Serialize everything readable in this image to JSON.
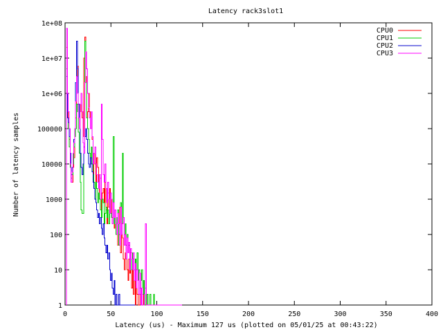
{
  "chart_data": {
    "type": "line",
    "title": "Latency rack3slot1",
    "xlabel": "Latency (us) - Maximum 127 us (plotted on 05/01/25 at 00:43:22)",
    "ylabel": "Number of latency samples",
    "xlim": [
      0,
      400
    ],
    "ylim": [
      1,
      100000000
    ],
    "yscale": "log",
    "grid": false,
    "legend_position": "top-right",
    "x_ticks": [
      "0",
      "50",
      "100",
      "150",
      "200",
      "250",
      "300",
      "350",
      "400"
    ],
    "y_ticks": [
      "1",
      "10",
      "100",
      "1000",
      "10000",
      "100000",
      "1e+06",
      "1e+07",
      "1e+08"
    ],
    "series": [
      {
        "name": "CPU0",
        "color": "#ff0000",
        "x": [
          2,
          3,
          4,
          5,
          6,
          7,
          8,
          9,
          10,
          11,
          12,
          13,
          14,
          15,
          16,
          17,
          18,
          19,
          20,
          21,
          22,
          23,
          24,
          25,
          26,
          27,
          28,
          29,
          30,
          31,
          32,
          33,
          34,
          35,
          36,
          37,
          38,
          39,
          40,
          41,
          42,
          43,
          44,
          45,
          46,
          47,
          48,
          49,
          50,
          51,
          52,
          53,
          54,
          55,
          56,
          57,
          58,
          59,
          60,
          61,
          62,
          63,
          64,
          65,
          66,
          67,
          68,
          69,
          70,
          71,
          72,
          73,
          74,
          75,
          76,
          77,
          78,
          79,
          80,
          81,
          82,
          83,
          84,
          85,
          86,
          87,
          88
        ],
        "values": [
          20000000,
          300000,
          200000,
          50000,
          10000,
          5000,
          3000,
          8000,
          15000,
          80000,
          200000,
          3000000,
          6000000,
          500000,
          100000,
          300000,
          1000000,
          200000,
          60000,
          10000000,
          40000000,
          3000000,
          200000,
          300000,
          1000000,
          300000,
          100000,
          300000,
          50000,
          5000,
          20000,
          10000,
          3000,
          15000,
          8000,
          2000,
          1000,
          4000,
          500,
          1500,
          2000,
          800,
          3000,
          500,
          200,
          1500,
          600,
          2000,
          400,
          1000,
          300,
          800,
          150,
          500,
          100,
          300,
          50,
          100,
          600,
          30,
          200,
          80,
          20,
          10,
          30,
          50,
          10,
          5,
          20,
          8,
          30,
          3,
          10,
          2,
          5,
          1,
          3,
          2,
          1,
          1,
          2,
          1,
          1,
          1,
          2,
          1,
          1
        ]
      },
      {
        "name": "CPU1",
        "color": "#00cc00",
        "x": [
          2,
          3,
          4,
          5,
          6,
          7,
          8,
          9,
          10,
          11,
          12,
          13,
          14,
          15,
          16,
          17,
          18,
          19,
          20,
          21,
          22,
          23,
          24,
          25,
          26,
          27,
          28,
          29,
          30,
          31,
          32,
          33,
          34,
          35,
          36,
          37,
          38,
          39,
          40,
          41,
          42,
          43,
          44,
          45,
          46,
          47,
          48,
          49,
          50,
          51,
          52,
          53,
          54,
          55,
          56,
          57,
          58,
          59,
          60,
          61,
          62,
          63,
          64,
          65,
          66,
          67,
          68,
          69,
          70,
          71,
          72,
          73,
          74,
          75,
          76,
          77,
          78,
          79,
          80,
          81,
          82,
          83,
          84,
          85,
          86,
          87,
          88,
          89,
          90,
          91,
          92,
          93,
          94,
          95,
          96,
          97,
          98,
          99,
          100,
          101,
          102,
          103,
          104,
          105,
          106,
          107,
          108,
          109,
          110,
          111
        ],
        "values": [
          5000000,
          200000,
          100000,
          30000,
          8000,
          4000,
          5000,
          10000,
          30000,
          60000,
          100000,
          500000,
          300000,
          80000,
          20000,
          3000,
          500,
          400,
          400,
          20000,
          30000000,
          2000000,
          200000,
          100000,
          50000,
          20000,
          10000,
          30000,
          10000,
          5000,
          3000,
          1000,
          3000,
          2000,
          800,
          1500,
          1000,
          500,
          300,
          1000,
          800,
          200,
          400,
          600,
          300,
          500,
          200,
          1000,
          400,
          300,
          200,
          60000,
          200,
          500,
          100,
          300,
          500,
          50,
          200,
          800,
          100,
          20000,
          300,
          100,
          200,
          50,
          100,
          30,
          50,
          20,
          40,
          10,
          30,
          20,
          10,
          20,
          10,
          30,
          5,
          10,
          3,
          5,
          10,
          2,
          5,
          1,
          3,
          1,
          2,
          1,
          1,
          2,
          1,
          1,
          1,
          2,
          1,
          1,
          1,
          1,
          1,
          1,
          1,
          1,
          1,
          1,
          1,
          1,
          1,
          1
        ]
      },
      {
        "name": "CPU2",
        "color": "#0000cc",
        "x": [
          2,
          3,
          4,
          5,
          6,
          7,
          8,
          9,
          10,
          11,
          12,
          13,
          14,
          15,
          16,
          17,
          18,
          19,
          20,
          21,
          22,
          23,
          24,
          25,
          26,
          27,
          28,
          29,
          30,
          31,
          32,
          33,
          34,
          35,
          36,
          37,
          38,
          39,
          40,
          41,
          42,
          43,
          44,
          45,
          46,
          47,
          48,
          49,
          50,
          51,
          52,
          53,
          54,
          55,
          56,
          57,
          58,
          59,
          60,
          61,
          62,
          63,
          64,
          65,
          66,
          67,
          68,
          69,
          70,
          71,
          72,
          73,
          74,
          75,
          76
        ],
        "values": [
          3000000,
          200000,
          150000,
          60000,
          20000,
          5000,
          8000,
          20000,
          50000,
          100000,
          2000000,
          30000000,
          5000000,
          500000,
          100000,
          20000,
          8000,
          5000,
          10000,
          30000,
          60000,
          100000,
          50000,
          20000,
          10000,
          8000,
          15000,
          10000,
          6000,
          3000,
          2000,
          1000,
          800,
          500,
          300,
          400,
          200,
          300,
          150,
          100,
          200,
          80,
          50,
          30,
          50,
          20,
          30,
          10,
          5,
          8,
          3,
          2,
          5,
          1,
          2,
          1,
          1,
          2,
          1,
          1,
          1,
          1,
          1,
          1,
          1,
          1,
          1,
          1,
          1,
          1,
          1,
          1,
          1,
          1,
          1
        ]
      },
      {
        "name": "CPU3",
        "color": "#ff00ff",
        "x": [
          2,
          3,
          4,
          5,
          6,
          7,
          8,
          9,
          10,
          11,
          12,
          13,
          14,
          15,
          16,
          17,
          18,
          19,
          20,
          21,
          22,
          23,
          24,
          25,
          26,
          27,
          28,
          29,
          30,
          31,
          32,
          33,
          34,
          35,
          36,
          37,
          38,
          39,
          40,
          41,
          42,
          43,
          44,
          45,
          46,
          47,
          48,
          49,
          50,
          51,
          52,
          53,
          54,
          55,
          56,
          57,
          58,
          59,
          60,
          61,
          62,
          63,
          64,
          65,
          66,
          67,
          68,
          69,
          70,
          71,
          72,
          73,
          74,
          75,
          76,
          77,
          78,
          79,
          80,
          81,
          82,
          83,
          84,
          85,
          86,
          87,
          88,
          89,
          90,
          91,
          92,
          93,
          94,
          95,
          96,
          97,
          98,
          99,
          100,
          101,
          102,
          103,
          104,
          105,
          106,
          107,
          108,
          109,
          110,
          111,
          112,
          113,
          114,
          115,
          116,
          117,
          118,
          119,
          120,
          121,
          122,
          123,
          124,
          125,
          126,
          127
        ],
        "values": [
          70000000,
          1000000,
          300000,
          100000,
          10000,
          3000,
          6000,
          20000,
          40000,
          100000,
          600000,
          3000000,
          1000000,
          200000,
          100000,
          500000,
          1000000,
          300000,
          40000,
          20000,
          2000000,
          15000000,
          5000000,
          1000000,
          400000,
          200000,
          100000,
          300000,
          60000,
          10000,
          20000,
          30000,
          10000,
          5000,
          3000,
          2000,
          5000,
          1000,
          500000,
          50000,
          5000,
          3000,
          10000,
          2000,
          800,
          3000,
          1000,
          400,
          1500,
          1000,
          200,
          800,
          300,
          500,
          200,
          100,
          400,
          200,
          50,
          600,
          100,
          200,
          300,
          50,
          100,
          20,
          80,
          30,
          60,
          10,
          40,
          20,
          10,
          30,
          5,
          15,
          3,
          10,
          5,
          2,
          8,
          1,
          3,
          1,
          1,
          2,
          200,
          1,
          1,
          1,
          1,
          1,
          1,
          1,
          1,
          1,
          1,
          1,
          1,
          1,
          1,
          1,
          1,
          1,
          1,
          1,
          1,
          1,
          1,
          1,
          1,
          1,
          1,
          1,
          1,
          1,
          1,
          1,
          1,
          1,
          1,
          1,
          1,
          1,
          1,
          1
        ]
      }
    ]
  }
}
